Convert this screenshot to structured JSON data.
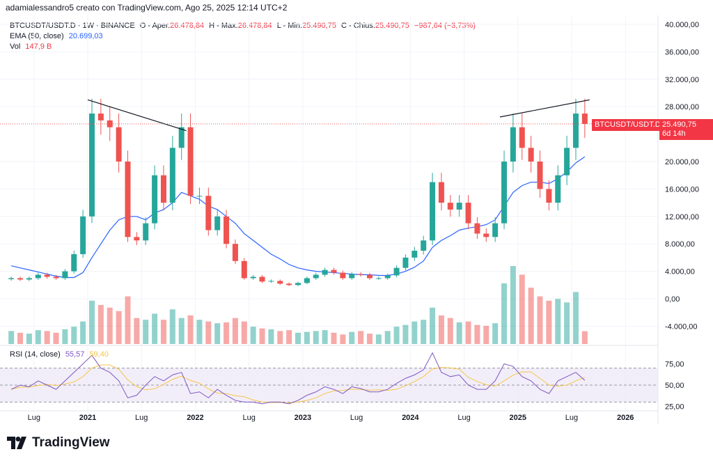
{
  "header": {
    "author_line": "adamialessandro5 creato con TradingView.com, Ago 25, 2025 12:14 UTC+2"
  },
  "legend": {
    "symbol": "BTCUSDT/USDT.D · 1W · BINANCE",
    "open_label": "O - Aper.",
    "open": "26.478,84",
    "high_label": "H - Max.",
    "high": "26.478,84",
    "low_label": "L - Min.",
    "low": "25.490,75",
    "close_label": "C - Chius.",
    "close": "25.490,75",
    "change": "−987,64 (−3,73%)",
    "ema_label": "EMA (50, close)",
    "ema_value": "20.699,03",
    "vol_label": "Vol",
    "vol_value": "147,9 B",
    "rsi_label": "RSI (14, close)",
    "rsi_value": "55,57",
    "rsi_ma_value": "59,40"
  },
  "price_tag": {
    "symbol": "BTCUSDT/USDT.D",
    "price": "25.490,75",
    "countdown": "6d 14h"
  },
  "footer": {
    "logo_text": "TradingView"
  },
  "colors": {
    "up": "#26a69a",
    "down": "#ef5350",
    "ema": "#2962ff",
    "rsi": "#7e57c2",
    "rsi_ma": "#f7c548",
    "rsi_band": "#ede7f6"
  },
  "chart_data": {
    "type": "candlestick",
    "start": "2020-04",
    "interval_shown": "1W",
    "price_ticks": [
      "40.000,00",
      "36.000,00",
      "32.000,00",
      "28.000,00",
      "20.000,00",
      "16.000,00",
      "12.000,00",
      "8.000,00",
      "4.000,00",
      "0,00",
      "-4.000,00"
    ],
    "price_tick_values": [
      40000,
      36000,
      32000,
      28000,
      20000,
      16000,
      12000,
      8000,
      4000,
      0,
      -4000
    ],
    "rsi_ticks": [
      "75,00",
      "50,00",
      "25,00"
    ],
    "rsi_tick_values": [
      75,
      50,
      25
    ],
    "time_ticks": [
      {
        "label": "Lug",
        "date": "2020-07"
      },
      {
        "label": "2021",
        "date": "2021-01"
      },
      {
        "label": "Lug",
        "date": "2021-07"
      },
      {
        "label": "2022",
        "date": "2022-01"
      },
      {
        "label": "Lug",
        "date": "2022-07"
      },
      {
        "label": "2023",
        "date": "2023-01"
      },
      {
        "label": "Lug",
        "date": "2023-07"
      },
      {
        "label": "2024",
        "date": "2024-01"
      },
      {
        "label": "Lug",
        "date": "2024-07"
      },
      {
        "label": "2025",
        "date": "2025-01"
      },
      {
        "label": "Lug",
        "date": "2025-07"
      },
      {
        "label": "2026",
        "date": "2026-01"
      }
    ],
    "close": [
      3000,
      2800,
      3000,
      3500,
      3200,
      3000,
      4000,
      6500,
      12000,
      27000,
      26000,
      25000,
      20000,
      9000,
      8500,
      11000,
      18000,
      14000,
      22000,
      25000,
      15000,
      15000,
      10000,
      12000,
      8000,
      5500,
      3000,
      3200,
      2500,
      2600,
      2200,
      2000,
      2300,
      3000,
      3500,
      4200,
      3800,
      3000,
      3600,
      3500,
      3000,
      3000,
      3400,
      4500,
      6000,
      7000,
      8500,
      17000,
      14000,
      13000,
      14000,
      11000,
      9500,
      9000,
      11000,
      20000,
      25000,
      22000,
      20000,
      16000,
      14000,
      18000,
      22000,
      27000,
      25490.75
    ],
    "ema50": [
      4800,
      4500,
      4200,
      3900,
      3600,
      3300,
      3100,
      3100,
      3800,
      6000,
      8000,
      10000,
      11500,
      12000,
      12000,
      11500,
      12500,
      13000,
      14000,
      15500,
      15000,
      14500,
      13500,
      13000,
      12000,
      11000,
      9500,
      8500,
      7500,
      6500,
      5800,
      5000,
      4500,
      4200,
      4000,
      3900,
      3800,
      3700,
      3600,
      3500,
      3500,
      3400,
      3400,
      3600,
      4000,
      4600,
      5500,
      7500,
      8500,
      9200,
      10000,
      10300,
      10500,
      10800,
      11500,
      13500,
      15500,
      16500,
      17000,
      17000,
      16800,
      17500,
      18500,
      19800,
      20699.03
    ],
    "volume_b": [
      150,
      130,
      120,
      160,
      150,
      130,
      170,
      200,
      260,
      500,
      450,
      420,
      380,
      550,
      300,
      280,
      350,
      280,
      400,
      300,
      330,
      280,
      260,
      240,
      250,
      300,
      260,
      200,
      180,
      170,
      150,
      160,
      130,
      140,
      150,
      160,
      130,
      110,
      140,
      150,
      120,
      110,
      150,
      200,
      220,
      260,
      280,
      420,
      330,
      300,
      250,
      260,
      220,
      210,
      240,
      700,
      900,
      800,
      650,
      550,
      500,
      520,
      480,
      600,
      147.9
    ],
    "rsi": [
      45,
      50,
      48,
      55,
      50,
      45,
      55,
      65,
      75,
      85,
      70,
      65,
      55,
      35,
      38,
      50,
      60,
      55,
      62,
      65,
      40,
      42,
      35,
      45,
      38,
      32,
      30,
      30,
      28,
      30,
      30,
      28,
      32,
      38,
      42,
      48,
      45,
      40,
      48,
      46,
      42,
      42,
      45,
      52,
      58,
      62,
      68,
      88,
      65,
      60,
      62,
      50,
      45,
      45,
      55,
      75,
      72,
      60,
      55,
      45,
      40,
      55,
      60,
      65,
      55.57
    ],
    "trendlines": [
      {
        "from": {
          "date": "2021-01",
          "price": 29000
        },
        "to": {
          "date": "2021-12",
          "price": 24500
        }
      },
      {
        "from": {
          "date": "2024-11",
          "price": 26500
        },
        "to": {
          "date": "2025-09",
          "price": 29000
        }
      }
    ],
    "last_price": 25490.75
  }
}
